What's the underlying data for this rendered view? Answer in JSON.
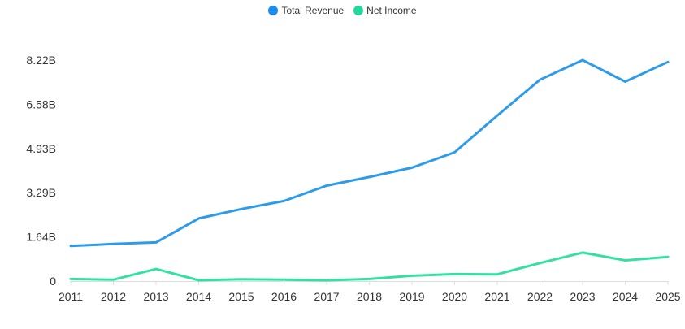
{
  "chart_data": {
    "type": "line",
    "title": "",
    "xlabel": "",
    "ylabel": "",
    "categories": [
      "2011",
      "2012",
      "2013",
      "2014",
      "2015",
      "2016",
      "2017",
      "2018",
      "2019",
      "2020",
      "2021",
      "2022",
      "2023",
      "2024",
      "2025"
    ],
    "y_ticks": [
      {
        "value": 0,
        "label": "0"
      },
      {
        "value": 1.64,
        "label": "1.64B"
      },
      {
        "value": 3.29,
        "label": "3.29B"
      },
      {
        "value": 4.93,
        "label": "4.93B"
      },
      {
        "value": 6.58,
        "label": "6.58B"
      },
      {
        "value": 8.22,
        "label": "8.22B"
      }
    ],
    "ylim": [
      0,
      8.22
    ],
    "grid": false,
    "legend_position": "top-center",
    "series": [
      {
        "name": "Total Revenue",
        "color": "#2E9BEA",
        "legend_color": "#1A8CF0",
        "values": [
          1.31,
          1.38,
          1.44,
          2.33,
          2.68,
          2.98,
          3.55,
          3.87,
          4.22,
          4.79,
          6.16,
          7.49,
          8.22,
          7.42,
          8.15
        ]
      },
      {
        "name": "Net Income",
        "color": "#34E0A1",
        "legend_color": "#1ED99A",
        "values": [
          0.08,
          0.05,
          0.45,
          0.03,
          0.07,
          0.05,
          0.03,
          0.08,
          0.2,
          0.26,
          0.25,
          0.67,
          1.06,
          0.77,
          0.9
        ]
      }
    ]
  }
}
